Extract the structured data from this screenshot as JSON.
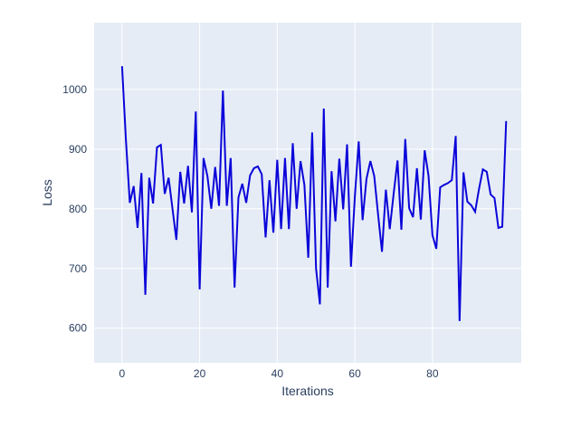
{
  "chart_data": {
    "type": "line",
    "title": "",
    "xlabel": "Iterations",
    "ylabel": "Loss",
    "legend": "none",
    "grid": true,
    "plot_bg_color": "#e5ecf6",
    "grid_color": "#ffffff",
    "paper_bg_color": "#ffffff",
    "line_color": "#0b04d9",
    "text_color": "#2a3f5f",
    "x_ticks": [
      0,
      20,
      40,
      60,
      80
    ],
    "y_ticks": [
      600,
      700,
      800,
      900,
      1000
    ],
    "xlim": [
      -7.2,
      102.9
    ],
    "ylim": [
      542,
      1112
    ],
    "x": [
      0,
      1,
      2,
      3,
      4,
      5,
      6,
      7,
      8,
      9,
      10,
      11,
      12,
      13,
      14,
      15,
      16,
      17,
      18,
      19,
      20,
      21,
      22,
      23,
      24,
      25,
      26,
      27,
      28,
      29,
      30,
      31,
      32,
      33,
      34,
      35,
      36,
      37,
      38,
      39,
      40,
      41,
      42,
      43,
      44,
      45,
      46,
      47,
      48,
      49,
      50,
      51,
      52,
      53,
      54,
      55,
      56,
      57,
      58,
      59,
      60,
      61,
      62,
      63,
      64,
      65,
      66,
      67,
      68,
      69,
      70,
      71,
      72,
      73,
      74,
      75,
      76,
      77,
      78,
      79,
      80,
      81,
      82,
      83,
      84,
      85,
      86,
      87,
      88,
      89,
      90,
      91,
      92,
      93,
      94,
      95,
      96,
      97,
      98,
      99
    ],
    "y": [
      1039,
      915,
      810,
      838,
      768,
      860,
      656,
      852,
      809,
      903,
      907,
      825,
      852,
      800,
      748,
      862,
      809,
      872,
      794,
      963,
      665,
      885,
      855,
      800,
      870,
      805,
      998,
      805,
      885,
      668,
      819,
      842,
      810,
      856,
      868,
      871,
      858,
      752,
      848,
      760,
      882,
      766,
      885,
      766,
      910,
      800,
      880,
      840,
      718,
      928,
      700,
      640,
      968,
      668,
      863,
      779,
      884,
      799,
      908,
      703,
      820,
      913,
      781,
      850,
      880,
      855,
      790,
      728,
      832,
      766,
      825,
      881,
      765,
      917,
      801,
      786,
      868,
      782,
      898,
      855,
      756,
      733,
      836,
      840,
      843,
      848,
      922,
      612,
      861,
      812,
      806,
      795,
      833,
      866,
      862,
      824,
      818,
      768,
      770,
      947
    ]
  }
}
